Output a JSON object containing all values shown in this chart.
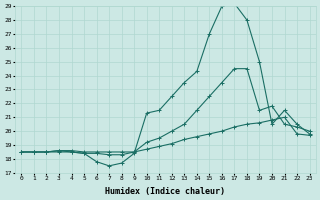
{
  "xlabel": "Humidex (Indice chaleur)",
  "bg_color": "#cce8e4",
  "line_color": "#1a6e64",
  "grid_color": "#b0d8d0",
  "xlim": [
    -0.5,
    23.5
  ],
  "ylim": [
    17,
    29
  ],
  "yticks": [
    17,
    18,
    19,
    20,
    21,
    22,
    23,
    24,
    25,
    26,
    27,
    28,
    29
  ],
  "xticks": [
    0,
    1,
    2,
    3,
    4,
    5,
    6,
    7,
    8,
    9,
    10,
    11,
    12,
    13,
    14,
    15,
    16,
    17,
    18,
    19,
    20,
    21,
    22,
    23
  ],
  "line1_x": [
    0,
    1,
    2,
    3,
    4,
    5,
    6,
    7,
    8,
    9,
    10,
    11,
    12,
    13,
    14,
    15,
    16,
    17,
    18,
    19,
    20,
    21,
    22,
    23
  ],
  "line1_y": [
    18.5,
    18.5,
    18.5,
    18.5,
    18.5,
    18.4,
    17.8,
    17.5,
    17.7,
    18.4,
    21.3,
    21.5,
    22.5,
    23.5,
    24.3,
    27.0,
    29.0,
    29.2,
    28.0,
    25.0,
    20.5,
    21.5,
    20.5,
    19.8
  ],
  "line2_x": [
    0,
    1,
    2,
    3,
    4,
    5,
    6,
    7,
    8,
    9,
    10,
    11,
    12,
    13,
    14,
    15,
    16,
    17,
    18,
    19,
    20,
    21,
    22,
    23
  ],
  "line2_y": [
    18.5,
    18.5,
    18.5,
    18.6,
    18.5,
    18.4,
    18.4,
    18.3,
    18.3,
    18.5,
    19.2,
    19.5,
    20.0,
    20.5,
    21.5,
    22.5,
    23.5,
    24.5,
    24.5,
    21.5,
    21.8,
    20.5,
    20.3,
    20.0
  ],
  "line3_x": [
    0,
    1,
    2,
    3,
    4,
    5,
    6,
    7,
    8,
    9,
    10,
    11,
    12,
    13,
    14,
    15,
    16,
    17,
    18,
    19,
    20,
    21,
    22,
    23
  ],
  "line3_y": [
    18.5,
    18.5,
    18.5,
    18.6,
    18.6,
    18.5,
    18.5,
    18.5,
    18.5,
    18.5,
    18.7,
    18.9,
    19.1,
    19.4,
    19.6,
    19.8,
    20.0,
    20.3,
    20.5,
    20.6,
    20.8,
    21.0,
    19.8,
    19.7
  ]
}
